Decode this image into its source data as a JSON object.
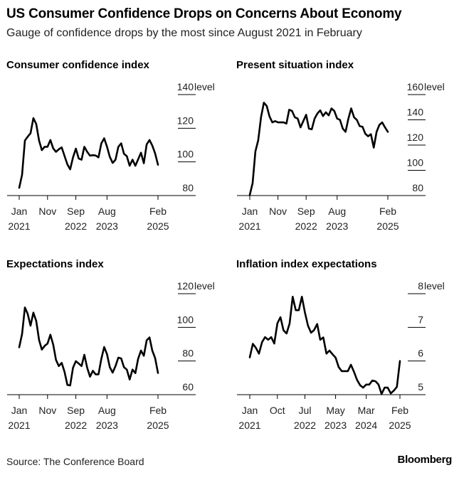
{
  "header": {
    "title": "US Consumer Confidence Drops on Concerns About Economy",
    "subtitle": "Gauge of confidence drops by the most since August 2021 in February"
  },
  "footer": {
    "source": "Source: The Conference Board",
    "brand": "Bloomberg"
  },
  "colors": {
    "line": "#000000",
    "axis": "#000000",
    "text": "#222222",
    "background": "#ffffff"
  },
  "chart_data": [
    {
      "type": "line",
      "title": "Consumer confidence index",
      "unit": "level",
      "ylim": [
        80,
        140
      ],
      "y_ticks": [
        "80",
        "100",
        "120",
        "140"
      ],
      "x_range": [
        "2021-01",
        "2025-02"
      ],
      "x_ticks": [
        {
          "x": "2021-01",
          "month": "Jan",
          "year": "2021"
        },
        {
          "x": "2021-11",
          "month": "Nov",
          "year": ""
        },
        {
          "x": "2022-09",
          "month": "Sep",
          "year": "2022"
        },
        {
          "x": "2023-08",
          "month": "Aug",
          "year": "2023"
        },
        {
          "x": "2025-02",
          "month": "Feb",
          "year": "2025"
        }
      ],
      "grid": true,
      "values": [
        84.6,
        92.3,
        112.7,
        115,
        117,
        126,
        122.5,
        112.7,
        107,
        109,
        109,
        113,
        108,
        106,
        107.5,
        108.6,
        103.5,
        98.5,
        95.6,
        102.7,
        107.9,
        102,
        101.3,
        109,
        106,
        103.7,
        104,
        103.8,
        102.7,
        111,
        114,
        109,
        103,
        99.4,
        101.3,
        109,
        111,
        104.8,
        103.4,
        97.7,
        101.3,
        97.7,
        101.5,
        105.5,
        99.2,
        110.4,
        113,
        109.7,
        105,
        98.3
      ]
    },
    {
      "type": "line",
      "title": "Present situation index",
      "unit": "level",
      "ylim": [
        80,
        160
      ],
      "y_ticks": [
        "80",
        "100",
        "120",
        "140",
        "160"
      ],
      "x_range": [
        "2021-01",
        "2025-02"
      ],
      "x_ticks": [
        {
          "x": "2021-01",
          "month": "Jan",
          "year": "2021"
        },
        {
          "x": "2021-11",
          "month": "Nov",
          "year": ""
        },
        {
          "x": "2022-09",
          "month": "Sep",
          "year": "2022"
        },
        {
          "x": "2023-08",
          "month": "Aug",
          "year": "2023"
        },
        {
          "x": "2025-02",
          "month": "Feb",
          "year": "2025"
        }
      ],
      "grid": true,
      "values": [
        80.5,
        89.9,
        115,
        124,
        142,
        153.6,
        151,
        142.7,
        138,
        139,
        138,
        138,
        138,
        137,
        148,
        147,
        142,
        141,
        134,
        139,
        144,
        133,
        132.5,
        141,
        145,
        147.5,
        143,
        146,
        143.5,
        149,
        147,
        141,
        140,
        133,
        130.5,
        141,
        149,
        142,
        140,
        135,
        134.5,
        129,
        127,
        128.6,
        118,
        130.5,
        136,
        138,
        134,
        130.5
      ]
    },
    {
      "type": "line",
      "title": "Expectations index",
      "unit": "level",
      "ylim": [
        60,
        120
      ],
      "y_ticks": [
        "60",
        "80",
        "100",
        "120"
      ],
      "x_range": [
        "2021-01",
        "2025-02"
      ],
      "x_ticks": [
        {
          "x": "2021-01",
          "month": "Jan",
          "year": "2021"
        },
        {
          "x": "2021-11",
          "month": "Nov",
          "year": ""
        },
        {
          "x": "2022-09",
          "month": "Sep",
          "year": "2022"
        },
        {
          "x": "2023-08",
          "month": "Aug",
          "year": "2023"
        },
        {
          "x": "2025-02",
          "month": "Feb",
          "year": "2025"
        }
      ],
      "grid": true,
      "values": [
        88.2,
        96,
        111.8,
        108,
        101,
        108.7,
        103.8,
        92.5,
        86.8,
        89,
        90.4,
        95.6,
        89.7,
        80.6,
        77,
        78.9,
        73.5,
        65.8,
        65.5,
        76,
        79.9,
        78.5,
        77,
        83.7,
        76,
        70.7,
        74.2,
        72.1,
        72.1,
        81.3,
        88.3,
        84,
        76.3,
        73.1,
        77,
        82,
        81.5,
        76.3,
        74.9,
        69,
        74.9,
        72.8,
        81.3,
        86.2,
        83.1,
        92.3,
        94,
        86.2,
        81.7,
        72.9
      ]
    },
    {
      "type": "line",
      "title": "Inflation index expectations",
      "unit": "level",
      "ylim": [
        5,
        8
      ],
      "y_ticks": [
        "5",
        "6",
        "7",
        "8"
      ],
      "x_range": [
        "2021-01",
        "2025-02"
      ],
      "x_ticks": [
        {
          "x": "2021-01",
          "month": "Jan",
          "year": "2021"
        },
        {
          "x": "2021-10",
          "month": "Oct",
          "year": ""
        },
        {
          "x": "2022-07",
          "month": "Jul",
          "year": "2022"
        },
        {
          "x": "2023-05",
          "month": "May",
          "year": "2023"
        },
        {
          "x": "2024-03",
          "month": "Mar",
          "year": "2024"
        },
        {
          "x": "2025-02",
          "month": "Feb",
          "year": "2025"
        }
      ],
      "grid": true,
      "values": [
        6.11,
        6.51,
        6.39,
        6.22,
        6.56,
        6.71,
        6.63,
        6.71,
        6.52,
        7.12,
        7.3,
        6.91,
        6.82,
        7.12,
        7.91,
        7.51,
        7.51,
        7.91,
        7.44,
        7.05,
        6.84,
        6.92,
        7.1,
        6.63,
        6.7,
        6.22,
        6.31,
        6.2,
        6.1,
        5.82,
        5.7,
        5.7,
        5.7,
        5.89,
        5.68,
        5.44,
        5.28,
        5.21,
        5.3,
        5.3,
        5.42,
        5.4,
        5.3,
        5.02,
        5.21,
        5.21,
        5.04,
        5.12,
        5.23,
        6.0
      ]
    }
  ]
}
